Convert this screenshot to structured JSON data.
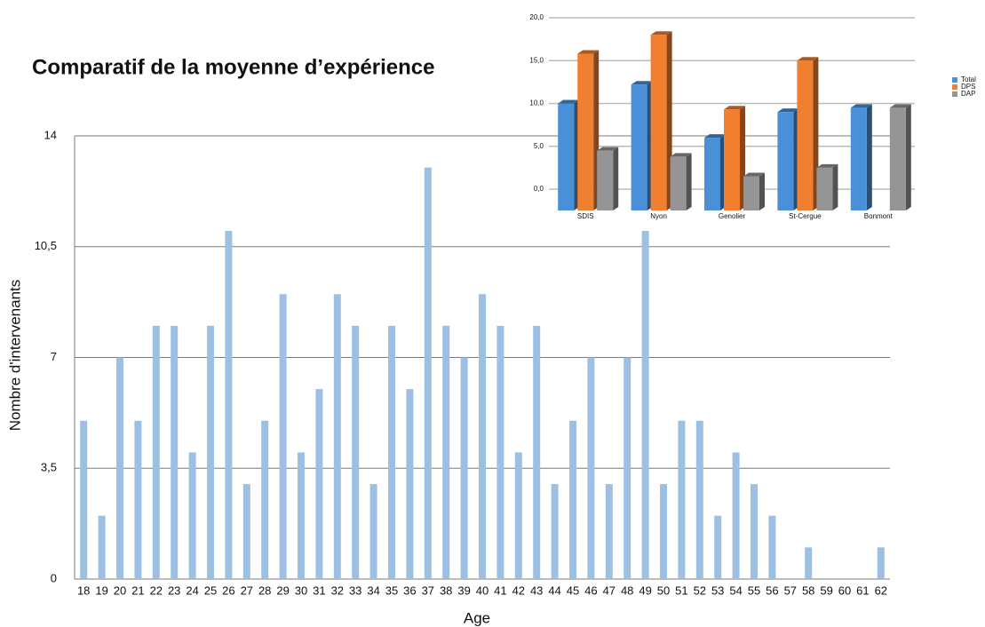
{
  "chart_data": [
    {
      "type": "bar",
      "title": "Comparatif de la moyenne d’expérience",
      "x_label": "Age",
      "y_label": "Nombre d'intervenants",
      "categories": [
        "18",
        "19",
        "20",
        "21",
        "22",
        "23",
        "24",
        "25",
        "26",
        "27",
        "28",
        "29",
        "30",
        "31",
        "32",
        "33",
        "34",
        "35",
        "36",
        "37",
        "38",
        "39",
        "40",
        "41",
        "42",
        "43",
        "44",
        "45",
        "46",
        "47",
        "48",
        "49",
        "50",
        "51",
        "52",
        "53",
        "54",
        "55",
        "56",
        "57",
        "58",
        "59",
        "60",
        "61",
        "62"
      ],
      "values": [
        5,
        2,
        7,
        5,
        8,
        8,
        4,
        8,
        11,
        3,
        5,
        9,
        4,
        6,
        9,
        8,
        3,
        8,
        6,
        13,
        8,
        7,
        9,
        8,
        4,
        8,
        3,
        5,
        7,
        3,
        7,
        11,
        3,
        5,
        5,
        2,
        4,
        3,
        2,
        0,
        1,
        0,
        0,
        0,
        1
      ],
      "color": "#9dbfe2",
      "ylim": [
        0,
        14
      ],
      "yticks": [
        0,
        {
          "value": 3.5,
          "label": "3,5"
        },
        7,
        {
          "value": 10.5,
          "label": "10,5"
        },
        14
      ],
      "grid": true
    },
    {
      "type": "bar",
      "three_d": true,
      "categories": [
        "SDIS",
        "Nyon",
        "Genolier",
        "St-Cergue",
        "Bonmont"
      ],
      "series": [
        {
          "name": "Total",
          "color": "#4a90d9",
          "values": [
            10.0,
            12.2,
            6.0,
            9.0,
            9.5
          ]
        },
        {
          "name": "DPS",
          "color": "#f08030",
          "values": [
            15.8,
            18.0,
            9.3,
            15.0,
            null
          ]
        },
        {
          "name": "DAP",
          "color": "#959595",
          "values": [
            4.5,
            3.8,
            1.5,
            2.5,
            9.5
          ]
        }
      ],
      "ylim": [
        0,
        20
      ],
      "yticks": [
        {
          "value": 0,
          "label": "0,0"
        },
        {
          "value": 5,
          "label": "5,0"
        },
        {
          "value": 10,
          "label": "10,0"
        },
        {
          "value": 15,
          "label": "15,0"
        },
        {
          "value": 20,
          "label": "20,0"
        }
      ],
      "grid": true,
      "legend": "right"
    }
  ]
}
